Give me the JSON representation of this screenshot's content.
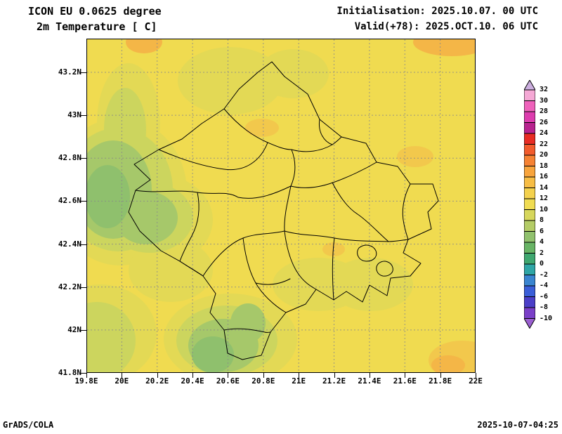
{
  "header": {
    "model_line": "ICON EU 0.0625 degree",
    "field_line": "2m Temperature [ C]",
    "init_line": "Initialisation: 2025.10.07. 00 UTC",
    "valid_line": "Valid(+78): 2025.OCT.10. 06 UTC"
  },
  "footer": {
    "left": "GrADS/COLA",
    "right": "2025-10-07-04:25"
  },
  "axes": {
    "lat_labels": [
      "43.2N",
      "43N",
      "42.8N",
      "42.6N",
      "42.4N",
      "42.2N",
      "42N",
      "41.8N"
    ],
    "lon_labels": [
      "19.8E",
      "20E",
      "20.2E",
      "20.4E",
      "20.6E",
      "20.8E",
      "21E",
      "21.2E",
      "21.4E",
      "21.6E",
      "21.8E",
      "22E"
    ]
  },
  "colorbar": {
    "labels": [
      "32",
      "30",
      "28",
      "26",
      "24",
      "22",
      "20",
      "18",
      "16",
      "14",
      "12",
      "10",
      "8",
      "6",
      "4",
      "2",
      "0",
      "-2",
      "-4",
      "-6",
      "-8",
      "-10"
    ],
    "arrow_top_color": "#cbaede",
    "arrow_bottom_color": "#9a5fd0",
    "segment_colors": [
      "#f5a8d5",
      "#ef62bb",
      "#dd3cae",
      "#b8238f",
      "#e82c24",
      "#f25b2c",
      "#f68233",
      "#f8a43c",
      "#f7bd45",
      "#f4d14d",
      "#f0dc52",
      "#d7d75c",
      "#b4cc66",
      "#90c16d",
      "#68b465",
      "#3fa76f",
      "#2fa6a6",
      "#3a85d0",
      "#3a5ed8",
      "#4b3fc8",
      "#7a3fc8"
    ]
  },
  "map": {
    "palette": {
      "background": "#f0db50",
      "pale": "#e3d955",
      "light_green": "#ccd55e",
      "green": "#a6c86a",
      "deep_green": "#8fc06d",
      "orange": "#f4b647",
      "light_orange": "#f2c84c",
      "grid": "#8a8a8a"
    }
  }
}
